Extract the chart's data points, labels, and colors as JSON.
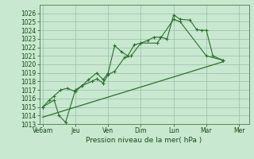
{
  "background_color": "#c8e8d0",
  "grid_color": "#9abca8",
  "line_color": "#2d6e2d",
  "xlabel": "Pression niveau de la mer( hPa )",
  "ylim": [
    1013,
    1027
  ],
  "yticks": [
    1013,
    1014,
    1015,
    1016,
    1017,
    1018,
    1019,
    1020,
    1021,
    1022,
    1023,
    1024,
    1025,
    1026
  ],
  "xtick_labels": [
    "Ve6am",
    "Jeu",
    "Ven",
    "Dim",
    "Lun",
    "Mar",
    "Mer"
  ],
  "xtick_positions": [
    0,
    1,
    2,
    3,
    4,
    5,
    6
  ],
  "xlim": [
    -0.1,
    6.3
  ],
  "line1_x": [
    0.0,
    0.2,
    0.35,
    0.55,
    0.75,
    1.0,
    1.2,
    1.4,
    1.65,
    1.85,
    2.0,
    2.2,
    2.4,
    2.6,
    2.8,
    3.0,
    3.2,
    3.4,
    3.6,
    3.8,
    4.0,
    4.2,
    4.5,
    4.7,
    4.85,
    5.0,
    5.2,
    5.5
  ],
  "line1_y": [
    1015.0,
    1015.8,
    1016.3,
    1017.0,
    1017.2,
    1016.8,
    1017.5,
    1018.2,
    1019.0,
    1018.2,
    1019.0,
    1022.2,
    1021.5,
    1021.0,
    1022.3,
    1022.5,
    1022.8,
    1023.2,
    1023.2,
    1023.0,
    1025.8,
    1025.3,
    1025.2,
    1024.1,
    1024.0,
    1024.0,
    1021.0,
    1020.5
  ],
  "line2_x": [
    0.0,
    0.35,
    0.5,
    0.7,
    1.0,
    1.2,
    1.5,
    1.65,
    1.85,
    2.0,
    2.2,
    2.5,
    2.7,
    3.0,
    3.5,
    4.0,
    4.2,
    5.0,
    5.5
  ],
  "line2_y": [
    1015.0,
    1015.8,
    1014.0,
    1013.2,
    1017.0,
    1017.5,
    1018.0,
    1018.3,
    1017.8,
    1018.8,
    1019.2,
    1020.8,
    1021.0,
    1022.5,
    1022.5,
    1025.3,
    1025.0,
    1021.0,
    1020.5
  ],
  "line3_x": [
    0.0,
    5.5
  ],
  "line3_y": [
    1013.8,
    1020.3
  ]
}
